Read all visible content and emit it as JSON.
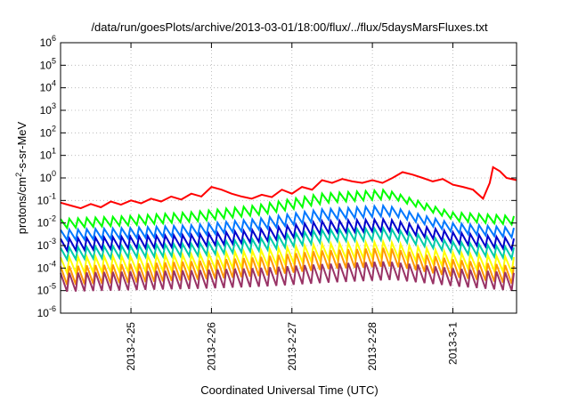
{
  "chart_data": {
    "type": "line",
    "title": "/data/run/goesPlots/archive/2013-03-01/18:00/flux/../flux/5daysMarsFluxes.txt",
    "xlabel": "Coordinated Universal Time (UTC)",
    "ylabel": {
      "pre": "protons/cm",
      "sup": "2",
      "post": "-s-sr-MeV"
    },
    "x_range": [
      "2013-02-24T03:00",
      "2013-03-01T19:00"
    ],
    "x_ticks": [
      "2013-2-25",
      "2013-2-26",
      "2013-2-27",
      "2013-2-28",
      "2013-3-1"
    ],
    "y_scale": "log",
    "ylim": [
      1e-06,
      1000000.0
    ],
    "y_ticks": [
      {
        "base": "10",
        "exp": "6"
      },
      {
        "base": "10",
        "exp": "5"
      },
      {
        "base": "10",
        "exp": "4"
      },
      {
        "base": "10",
        "exp": "3"
      },
      {
        "base": "10",
        "exp": "2"
      },
      {
        "base": "10",
        "exp": "1"
      },
      {
        "base": "10",
        "exp": "0"
      },
      {
        "base": "10",
        "exp": "-1"
      },
      {
        "base": "10",
        "exp": "-2"
      },
      {
        "base": "10",
        "exp": "-3"
      },
      {
        "base": "10",
        "exp": "-4"
      },
      {
        "base": "10",
        "exp": "-5"
      },
      {
        "base": "10",
        "exp": "-6"
      }
    ],
    "grid": true,
    "legend": "none",
    "series": [
      {
        "color": "#ff0000",
        "points": [
          [
            "2013-02-24T03:00",
            0.08
          ],
          [
            "2013-02-24T06:00",
            0.06
          ],
          [
            "2013-02-24T09:00",
            0.045
          ],
          [
            "2013-02-24T12:00",
            0.07
          ],
          [
            "2013-02-24T15:00",
            0.05
          ],
          [
            "2013-02-24T18:00",
            0.09
          ],
          [
            "2013-02-24T21:00",
            0.065
          ],
          [
            "2013-02-25T00:00",
            0.1
          ],
          [
            "2013-02-25T03:00",
            0.075
          ],
          [
            "2013-02-25T06:00",
            0.12
          ],
          [
            "2013-02-25T09:00",
            0.09
          ],
          [
            "2013-02-25T12:00",
            0.15
          ],
          [
            "2013-02-25T15:00",
            0.11
          ],
          [
            "2013-02-25T18:00",
            0.2
          ],
          [
            "2013-02-25T21:00",
            0.15
          ],
          [
            "2013-02-26T00:00",
            0.4
          ],
          [
            "2013-02-26T03:00",
            0.3
          ],
          [
            "2013-02-26T06:00",
            0.2
          ],
          [
            "2013-02-26T09:00",
            0.15
          ],
          [
            "2013-02-26T12:00",
            0.12
          ],
          [
            "2013-02-26T15:00",
            0.18
          ],
          [
            "2013-02-26T18:00",
            0.14
          ],
          [
            "2013-02-26T21:00",
            0.3
          ],
          [
            "2013-02-27T00:00",
            0.2
          ],
          [
            "2013-02-27T03:00",
            0.4
          ],
          [
            "2013-02-27T06:00",
            0.3
          ],
          [
            "2013-02-27T09:00",
            0.8
          ],
          [
            "2013-02-27T12:00",
            0.6
          ],
          [
            "2013-02-27T15:00",
            0.9
          ],
          [
            "2013-02-27T18:00",
            0.7
          ],
          [
            "2013-02-27T21:00",
            0.6
          ],
          [
            "2013-02-28T00:00",
            0.8
          ],
          [
            "2013-02-28T03:00",
            0.6
          ],
          [
            "2013-02-28T06:00",
            1.0
          ],
          [
            "2013-02-28T09:00",
            1.8
          ],
          [
            "2013-02-28T12:00",
            1.4
          ],
          [
            "2013-02-28T15:00",
            1.0
          ],
          [
            "2013-02-28T18:00",
            0.7
          ],
          [
            "2013-02-28T21:00",
            0.9
          ],
          [
            "2013-03-01T00:00",
            0.5
          ],
          [
            "2013-03-01T03:00",
            0.4
          ],
          [
            "2013-03-01T06:00",
            0.3
          ],
          [
            "2013-03-01T09:00",
            0.12
          ],
          [
            "2013-03-01T11:00",
            0.6
          ],
          [
            "2013-03-01T12:00",
            3.0
          ],
          [
            "2013-03-01T14:00",
            2.0
          ],
          [
            "2013-03-01T16:00",
            1.0
          ],
          [
            "2013-03-01T19:00",
            0.8
          ]
        ]
      },
      {
        "color": "#00ff00",
        "hi": [
          0.015,
          0.02,
          0.03,
          0.06,
          0.2,
          0.3,
          0.03,
          0.02
        ],
        "lo_ratio": 0.4
      },
      {
        "color": "#0077ff",
        "hi": [
          0.005,
          0.006,
          0.008,
          0.015,
          0.04,
          0.06,
          0.01,
          0.006
        ],
        "lo_ratio": 0.35
      },
      {
        "color": "#0000cc",
        "hi": [
          0.002,
          0.0025,
          0.003,
          0.005,
          0.012,
          0.015,
          0.004,
          0.002
        ],
        "lo_ratio": 0.3
      },
      {
        "color": "#00ccaa",
        "hi": [
          0.0008,
          0.001,
          0.0012,
          0.002,
          0.005,
          0.006,
          0.0015,
          0.0008
        ],
        "lo_ratio": 0.3
      },
      {
        "color": "#ffff00",
        "hi": [
          0.0003,
          0.00035,
          0.0004,
          0.0006,
          0.0012,
          0.0015,
          0.0005,
          0.0003
        ],
        "lo_ratio": 0.2
      },
      {
        "color": "#ff9900",
        "hi": [
          0.00012,
          0.00015,
          0.0002,
          0.0003,
          0.0006,
          0.0008,
          0.00025,
          0.00012
        ],
        "lo_ratio": 0.15
      },
      {
        "color": "#993366",
        "hi": [
          6e-05,
          7e-05,
          8e-05,
          0.0001,
          0.00015,
          0.0002,
          0.0001,
          6e-05
        ],
        "lo_ratio": 0.15
      }
    ]
  }
}
